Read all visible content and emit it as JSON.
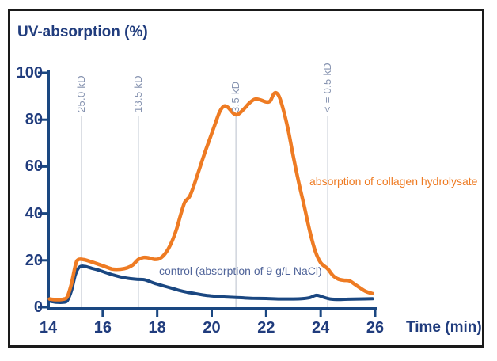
{
  "colors": {
    "curve_orange": "#ee7b23",
    "curve_navy": "#1a4781",
    "axis_navy": "#1a4781",
    "text_navy": "#203c7d",
    "marker_label_gray": "#8693b0",
    "gridline_gray": "#c4cad4",
    "control_label_blue": "#51659a",
    "frame_border": "#1a1a1a"
  },
  "chart_data": {
    "type": "line",
    "title": "UV-absorption (%)",
    "xlabel": "Time (min)",
    "ylabel": "UV-absorption (%)",
    "xlim": [
      14,
      26
    ],
    "ylim": [
      0,
      100
    ],
    "x_ticks": [
      14,
      16,
      18,
      20,
      22,
      24,
      26
    ],
    "y_ticks": [
      0,
      20,
      40,
      60,
      80,
      100
    ],
    "grid": "vertical molecular-weight marker lines only",
    "legend_position": "labels beside curves",
    "markers": [
      {
        "label": "25.0 kD",
        "time": 15.22
      },
      {
        "label": "13.5 kD",
        "time": 17.31
      },
      {
        "label": "3.5 kD",
        "time": 20.89
      },
      {
        "label": "< = 0.5 kD",
        "time": 24.26
      }
    ],
    "series": [
      {
        "name": "absorption of collagen hydrolysate",
        "color": "#ee7b23",
        "points": [
          [
            14.05,
            3.5
          ],
          [
            14.3,
            3.2
          ],
          [
            14.55,
            3.4
          ],
          [
            14.7,
            4.5
          ],
          [
            14.85,
            10
          ],
          [
            15.0,
            18
          ],
          [
            15.1,
            20.3
          ],
          [
            15.3,
            20.3
          ],
          [
            15.55,
            19.5
          ],
          [
            15.8,
            18.5
          ],
          [
            16.05,
            17.5
          ],
          [
            16.35,
            16.3
          ],
          [
            16.65,
            16.2
          ],
          [
            16.9,
            16.8
          ],
          [
            17.1,
            18
          ],
          [
            17.3,
            20.3
          ],
          [
            17.5,
            21.2
          ],
          [
            17.7,
            21
          ],
          [
            17.9,
            20.4
          ],
          [
            18.1,
            20.8
          ],
          [
            18.3,
            23
          ],
          [
            18.5,
            27
          ],
          [
            18.7,
            33
          ],
          [
            18.85,
            39
          ],
          [
            19.0,
            44.5
          ],
          [
            19.1,
            46
          ],
          [
            19.2,
            47.5
          ],
          [
            19.35,
            52
          ],
          [
            19.55,
            59
          ],
          [
            19.75,
            66
          ],
          [
            19.95,
            72.5
          ],
          [
            20.15,
            79
          ],
          [
            20.3,
            83.5
          ],
          [
            20.45,
            85.8
          ],
          [
            20.6,
            85.2
          ],
          [
            20.8,
            82.7
          ],
          [
            20.95,
            82.2
          ],
          [
            21.15,
            84.2
          ],
          [
            21.4,
            87.3
          ],
          [
            21.6,
            88.8
          ],
          [
            21.8,
            88.4
          ],
          [
            22.0,
            87.6
          ],
          [
            22.15,
            88
          ],
          [
            22.3,
            91.3
          ],
          [
            22.45,
            90.5
          ],
          [
            22.6,
            85.5
          ],
          [
            22.8,
            76
          ],
          [
            23.0,
            64
          ],
          [
            23.2,
            53
          ],
          [
            23.4,
            43
          ],
          [
            23.6,
            32.5
          ],
          [
            23.8,
            24
          ],
          [
            24.0,
            19
          ],
          [
            24.25,
            16.5
          ],
          [
            24.45,
            13.5
          ],
          [
            24.65,
            12
          ],
          [
            24.85,
            11.5
          ],
          [
            25.05,
            11.3
          ],
          [
            25.25,
            9.8
          ],
          [
            25.45,
            8.2
          ],
          [
            25.65,
            6.8
          ],
          [
            25.9,
            5.8
          ]
        ]
      },
      {
        "name": "control (absorption of 9 g/L NaCl)",
        "color": "#1a4781",
        "points": [
          [
            14.05,
            2.6
          ],
          [
            14.3,
            2.1
          ],
          [
            14.55,
            2.1
          ],
          [
            14.7,
            2.8
          ],
          [
            14.85,
            7
          ],
          [
            15.0,
            14
          ],
          [
            15.15,
            17.2
          ],
          [
            15.35,
            17.4
          ],
          [
            15.6,
            16.6
          ],
          [
            15.85,
            15.8
          ],
          [
            16.1,
            14.8
          ],
          [
            16.4,
            13.7
          ],
          [
            16.7,
            12.8
          ],
          [
            17.0,
            12.2
          ],
          [
            17.25,
            11.9
          ],
          [
            17.5,
            11.8
          ],
          [
            17.65,
            11.3
          ],
          [
            17.9,
            10.2
          ],
          [
            18.2,
            9.2
          ],
          [
            18.5,
            8.2
          ],
          [
            18.8,
            7.2
          ],
          [
            19.1,
            6.4
          ],
          [
            19.4,
            5.8
          ],
          [
            19.7,
            5.2
          ],
          [
            20.0,
            4.8
          ],
          [
            20.3,
            4.5
          ],
          [
            20.6,
            4.3
          ],
          [
            21.0,
            4.1
          ],
          [
            21.5,
            3.8
          ],
          [
            22.0,
            3.7
          ],
          [
            22.5,
            3.5
          ],
          [
            23.0,
            3.5
          ],
          [
            23.3,
            3.6
          ],
          [
            23.6,
            4.1
          ],
          [
            23.85,
            5.1
          ],
          [
            24.1,
            4.3
          ],
          [
            24.35,
            3.5
          ],
          [
            24.7,
            3.3
          ],
          [
            25.0,
            3.4
          ],
          [
            25.4,
            3.5
          ],
          [
            25.9,
            3.6
          ]
        ]
      }
    ]
  }
}
